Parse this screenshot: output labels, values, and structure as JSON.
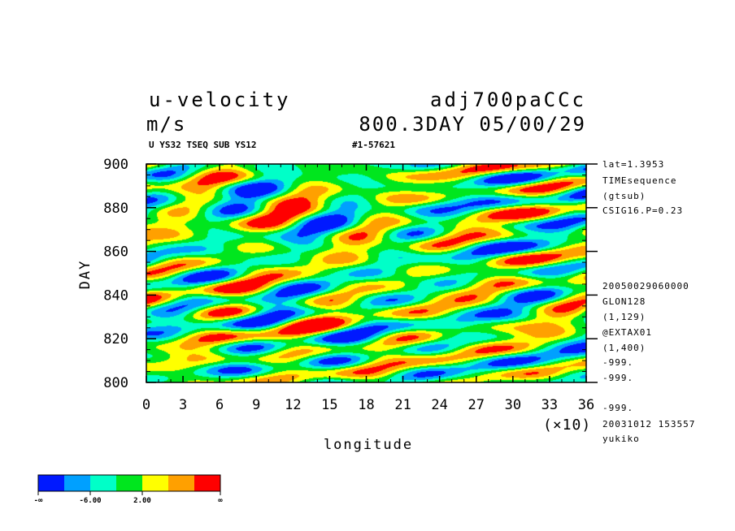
{
  "header": {
    "title_left": "u-velocity",
    "title_right": "adj700paCCc",
    "subtitle_left": "m/s",
    "subtitle_right": "800.3DAY 05/00/29",
    "caption_left": "U YS32 TSEQ SUB YS12",
    "caption_mid": "#1-57621"
  },
  "side_info": {
    "top": [
      "lat=1.3953",
      "TIMEsequence",
      "(gtsub)",
      "CSIG16.P=0.23"
    ],
    "bottom": [
      "20050029060000",
      "GLON128",
      "(1,129)",
      "@EXTAX01",
      "(1,400)",
      "-999.",
      "-999.",
      "-999.",
      "20031012 153557",
      "yukiko"
    ]
  },
  "chart_data": {
    "type": "heatmap",
    "title": "u-velocity",
    "units": "m/s",
    "xlabel": "longitude",
    "ylabel": "DAY",
    "x_multiplier_label": "(×10)",
    "xlim": [
      0,
      36
    ],
    "ylim": [
      800,
      900
    ],
    "x_ticks": [
      "0",
      "3",
      "6",
      "9",
      "12",
      "15",
      "18",
      "21",
      "24",
      "27",
      "30",
      "33",
      "36"
    ],
    "y_ticks": [
      "800",
      "820",
      "840",
      "860",
      "880",
      "900"
    ],
    "colorbar": {
      "colors": [
        "#0019ff",
        "#00a0ff",
        "#00ffc8",
        "#00e61e",
        "#ffff00",
        "#ffa000",
        "#ff0000"
      ],
      "labels": [
        "-∞",
        "-6.00",
        "2.00",
        "∞"
      ]
    }
  }
}
